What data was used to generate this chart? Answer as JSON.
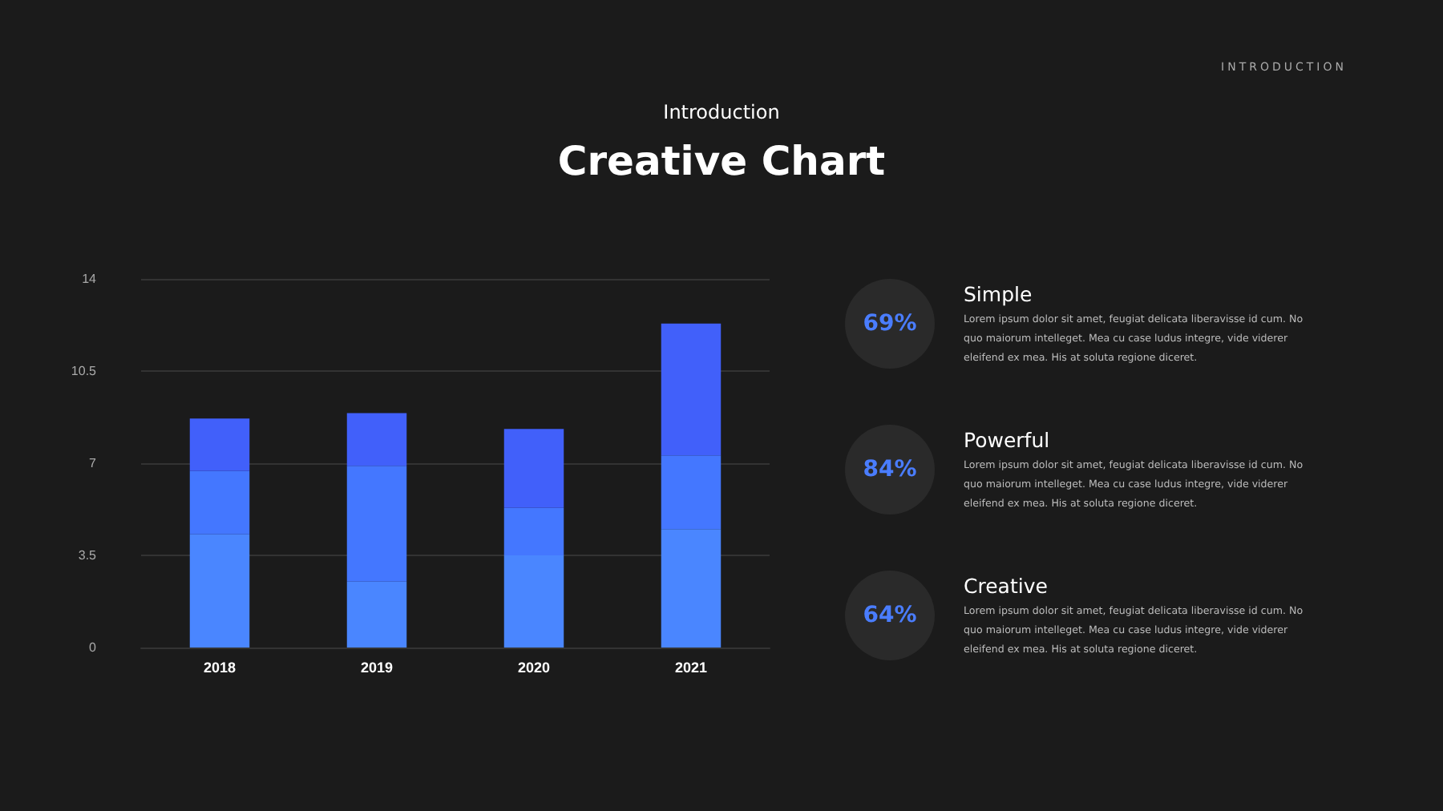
{
  "chart_data": [
    {
      "type": "bar",
      "title": "Creative Chart",
      "subtitle": "Introduction",
      "annotations": [
        "INTRODUCTION"
      ],
      "categories": [
        "2018",
        "2019",
        "2020",
        "2021"
      ],
      "series": [
        {
          "color": "#4a86ff",
          "values": [
            4.3,
            2.5,
            3.5,
            4.5
          ]
        },
        {
          "color": "#4477ff",
          "values": [
            2.4,
            4.4,
            1.8,
            2.8
          ]
        },
        {
          "color": "#4160fa",
          "values": [
            2.0,
            2.0,
            3.0,
            5.0
          ]
        }
      ],
      "stacked": true,
      "ylim": [
        0,
        14
      ],
      "yticks": [
        0,
        3.5,
        7,
        10.5,
        14
      ],
      "grid": "y"
    },
    {
      "type": "other",
      "annotations": [
        "69%",
        "Simple",
        "Lorem ipsum dolor sit amet, feugiat delicata liberavisse id cum. No quo maiorum intelleget. Mea cu case ludus integre, vide viderer eleifend ex mea. His at soluta regione diceret.",
        "84%",
        "Powerful",
        "Lorem ipsum dolor sit amet, feugiat delicata liberavisse id cum. No quo maiorum intelleget. Mea cu case ludus integre, vide viderer eleifend ex mea. His at soluta regione diceret.",
        "64%",
        "Creative",
        "Lorem ipsum dolor sit amet, feugiat delicata liberavisse id cum. No quo maiorum intelleget. Mea cu case ludus integre, vide viderer eleifend ex mea. His at soluta regione diceret."
      ]
    }
  ]
}
